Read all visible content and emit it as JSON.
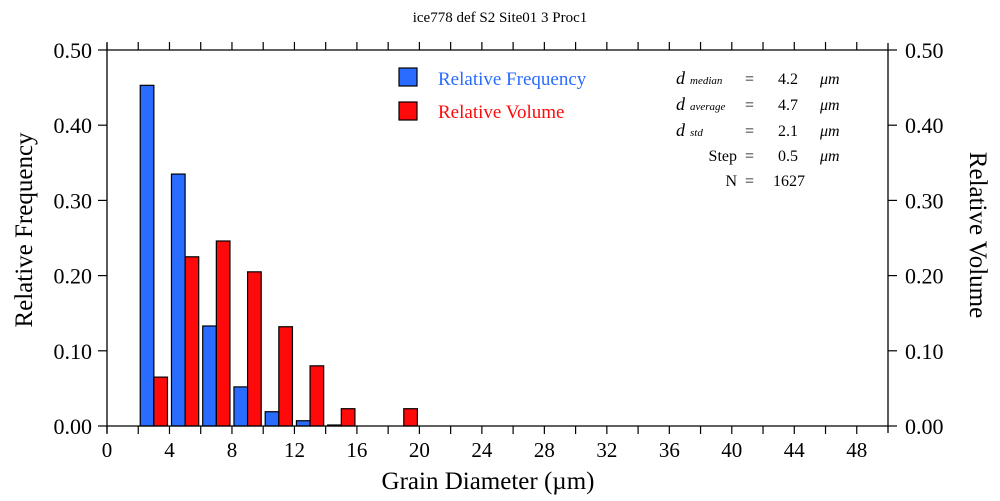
{
  "chart_data": {
    "type": "bar",
    "title": "ice778 def S2 Site01 3 Proc1",
    "xlabel": "Grain Diameter (µm)",
    "ylabel": "Relative Frequency",
    "y2label": "Relative Volume",
    "xlim": [
      0,
      50
    ],
    "ylim": [
      0,
      0.5
    ],
    "x_ticks": [
      "0",
      "4",
      "8",
      "12",
      "16",
      "20",
      "24",
      "28",
      "32",
      "36",
      "40",
      "44",
      "48"
    ],
    "y_ticks": [
      "0.00",
      "0.10",
      "0.20",
      "0.30",
      "0.40",
      "0.50"
    ],
    "y2_ticks": [
      "0.00",
      "0.10",
      "0.20",
      "0.30",
      "0.40",
      "0.50"
    ],
    "bin_edges": [
      2,
      4,
      6,
      8,
      10,
      12,
      14,
      16,
      18,
      20
    ],
    "series": [
      {
        "name": "Relative Frequency",
        "color": "#2a6cff",
        "values": [
          0.453,
          0.335,
          0.133,
          0.052,
          0.019,
          0.007,
          0.001,
          0,
          0
        ]
      },
      {
        "name": "Relative Volume",
        "color": "#ff0a0a",
        "values": [
          0.065,
          0.225,
          0.246,
          0.205,
          0.132,
          0.08,
          0.023,
          0,
          0.023
        ]
      }
    ],
    "legend_position": "top-center",
    "grid": false
  },
  "stats": [
    {
      "symbol": "d",
      "sub": "median",
      "eq": "=",
      "value": "4.2",
      "unit": "μm"
    },
    {
      "symbol": "d",
      "sub": "average",
      "eq": "=",
      "value": "4.7",
      "unit": "μm"
    },
    {
      "symbol": "d",
      "sub": "std",
      "eq": "=",
      "value": "2.1",
      "unit": "μm"
    },
    {
      "symbol": "Step",
      "sub": "",
      "eq": "=",
      "value": "0.5",
      "unit": "μm"
    },
    {
      "symbol": "N",
      "sub": "",
      "eq": "=",
      "value": "1627",
      "unit": ""
    }
  ]
}
